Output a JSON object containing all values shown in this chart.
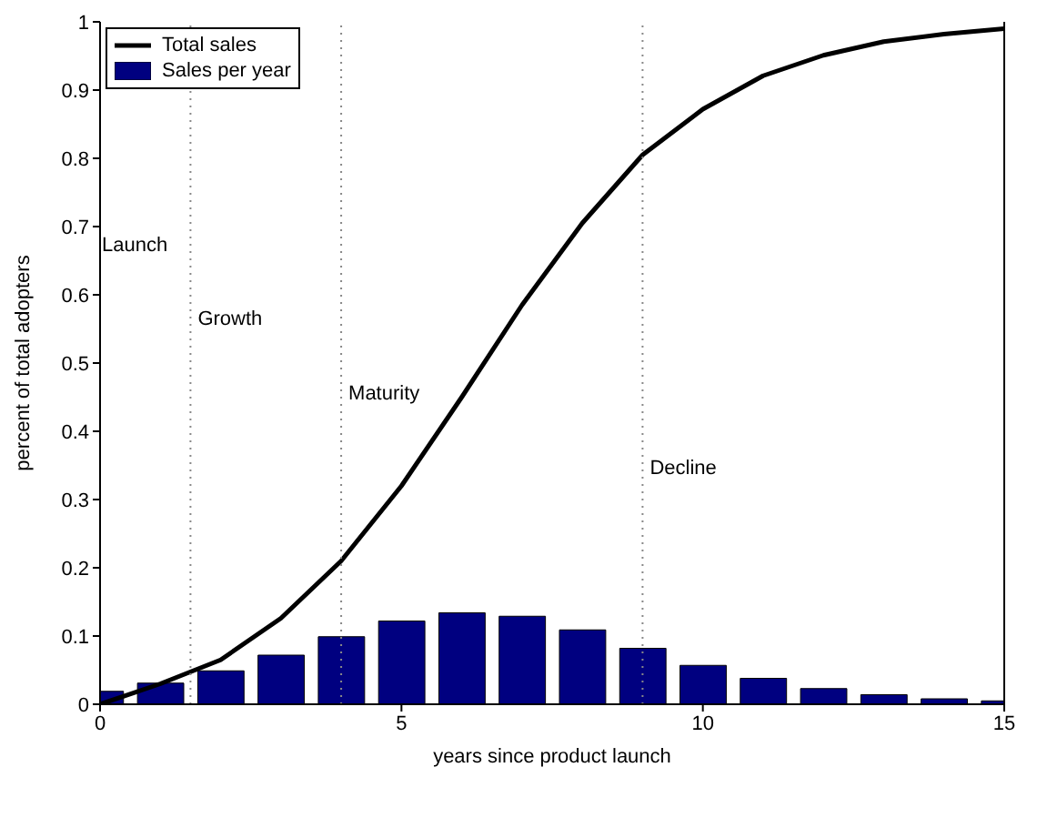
{
  "chart_data": {
    "type": "bar",
    "xlabel": "years since product launch",
    "ylabel": "percent of total adopters",
    "x": [
      0,
      1,
      2,
      3,
      4,
      5,
      6,
      7,
      8,
      9,
      10,
      11,
      12,
      13,
      14,
      15
    ],
    "series": [
      {
        "name": "Total sales",
        "type": "line",
        "color": "#000000",
        "values": [
          0,
          0.03,
          0.065,
          0.126,
          0.21,
          0.32,
          0.45,
          0.585,
          0.705,
          0.805,
          0.872,
          0.921,
          0.951,
          0.971,
          0.982,
          0.99
        ]
      },
      {
        "name": "Sales per year",
        "color": "#000080",
        "values": [
          0.019,
          0.031,
          0.049,
          0.072,
          0.099,
          0.122,
          0.134,
          0.129,
          0.109,
          0.082,
          0.057,
          0.038,
          0.023,
          0.014,
          0.008,
          0.005
        ]
      }
    ],
    "xlim": [
      0,
      15
    ],
    "xticks": [
      0,
      5,
      10,
      15
    ],
    "ylim": [
      0,
      1
    ],
    "yticks": [
      0,
      0.1,
      0.2,
      0.3,
      0.4,
      0.5,
      0.6,
      0.7,
      0.8,
      0.9,
      1
    ],
    "ref_lines": [
      {
        "axis": "x",
        "value": 1.5,
        "label": "Growth",
        "color": "#888888",
        "line_style": "dotted"
      },
      {
        "axis": "x",
        "value": 4,
        "label": "Maturity",
        "color": "#888888",
        "line_style": "dotted"
      },
      {
        "axis": "x",
        "value": 9,
        "label": "Decline",
        "color": "#888888",
        "line_style": "dotted"
      }
    ],
    "annotations": [
      "Launch"
    ],
    "grid": false,
    "legend": "top left",
    "marker": "none",
    "line_style": "solid"
  }
}
